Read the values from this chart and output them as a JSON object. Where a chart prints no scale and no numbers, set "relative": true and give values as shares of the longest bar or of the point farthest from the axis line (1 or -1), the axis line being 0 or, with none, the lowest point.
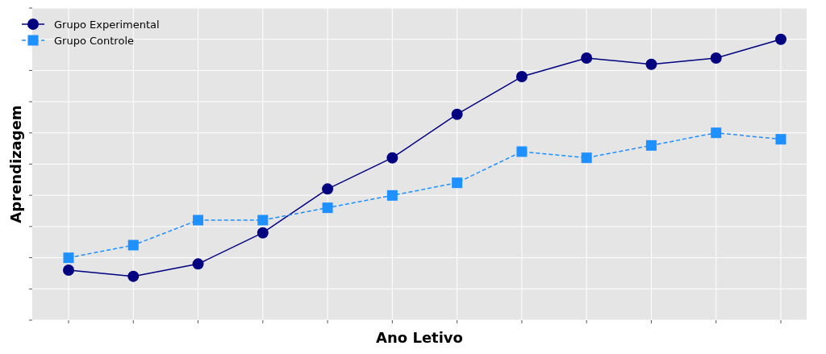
{
  "chart_data": {
    "type": "line",
    "xlabel": "Ano Letivo",
    "ylabel": "Aprendizagem",
    "relative": true,
    "grid": true,
    "legend": "top left",
    "categories": [
      null,
      null,
      null,
      null,
      null,
      null,
      null,
      null,
      null,
      null,
      null,
      null
    ],
    "series": [
      {
        "name": "Grupo Experimental",
        "color": "#000080",
        "marker": "circle",
        "line_style": "solid",
        "values": [
          0.178,
          0.156,
          0.2,
          0.311,
          0.467,
          0.578,
          0.733,
          0.867,
          0.933,
          0.911,
          0.933,
          1
        ]
      },
      {
        "name": "Grupo Controle",
        "color": "#1e90ff",
        "marker": "square",
        "line_style": "dashed",
        "values": [
          0.222,
          0.267,
          0.356,
          0.356,
          0.4,
          0.444,
          0.489,
          0.6,
          0.578,
          0.622,
          0.667,
          0.644
        ]
      }
    ]
  }
}
